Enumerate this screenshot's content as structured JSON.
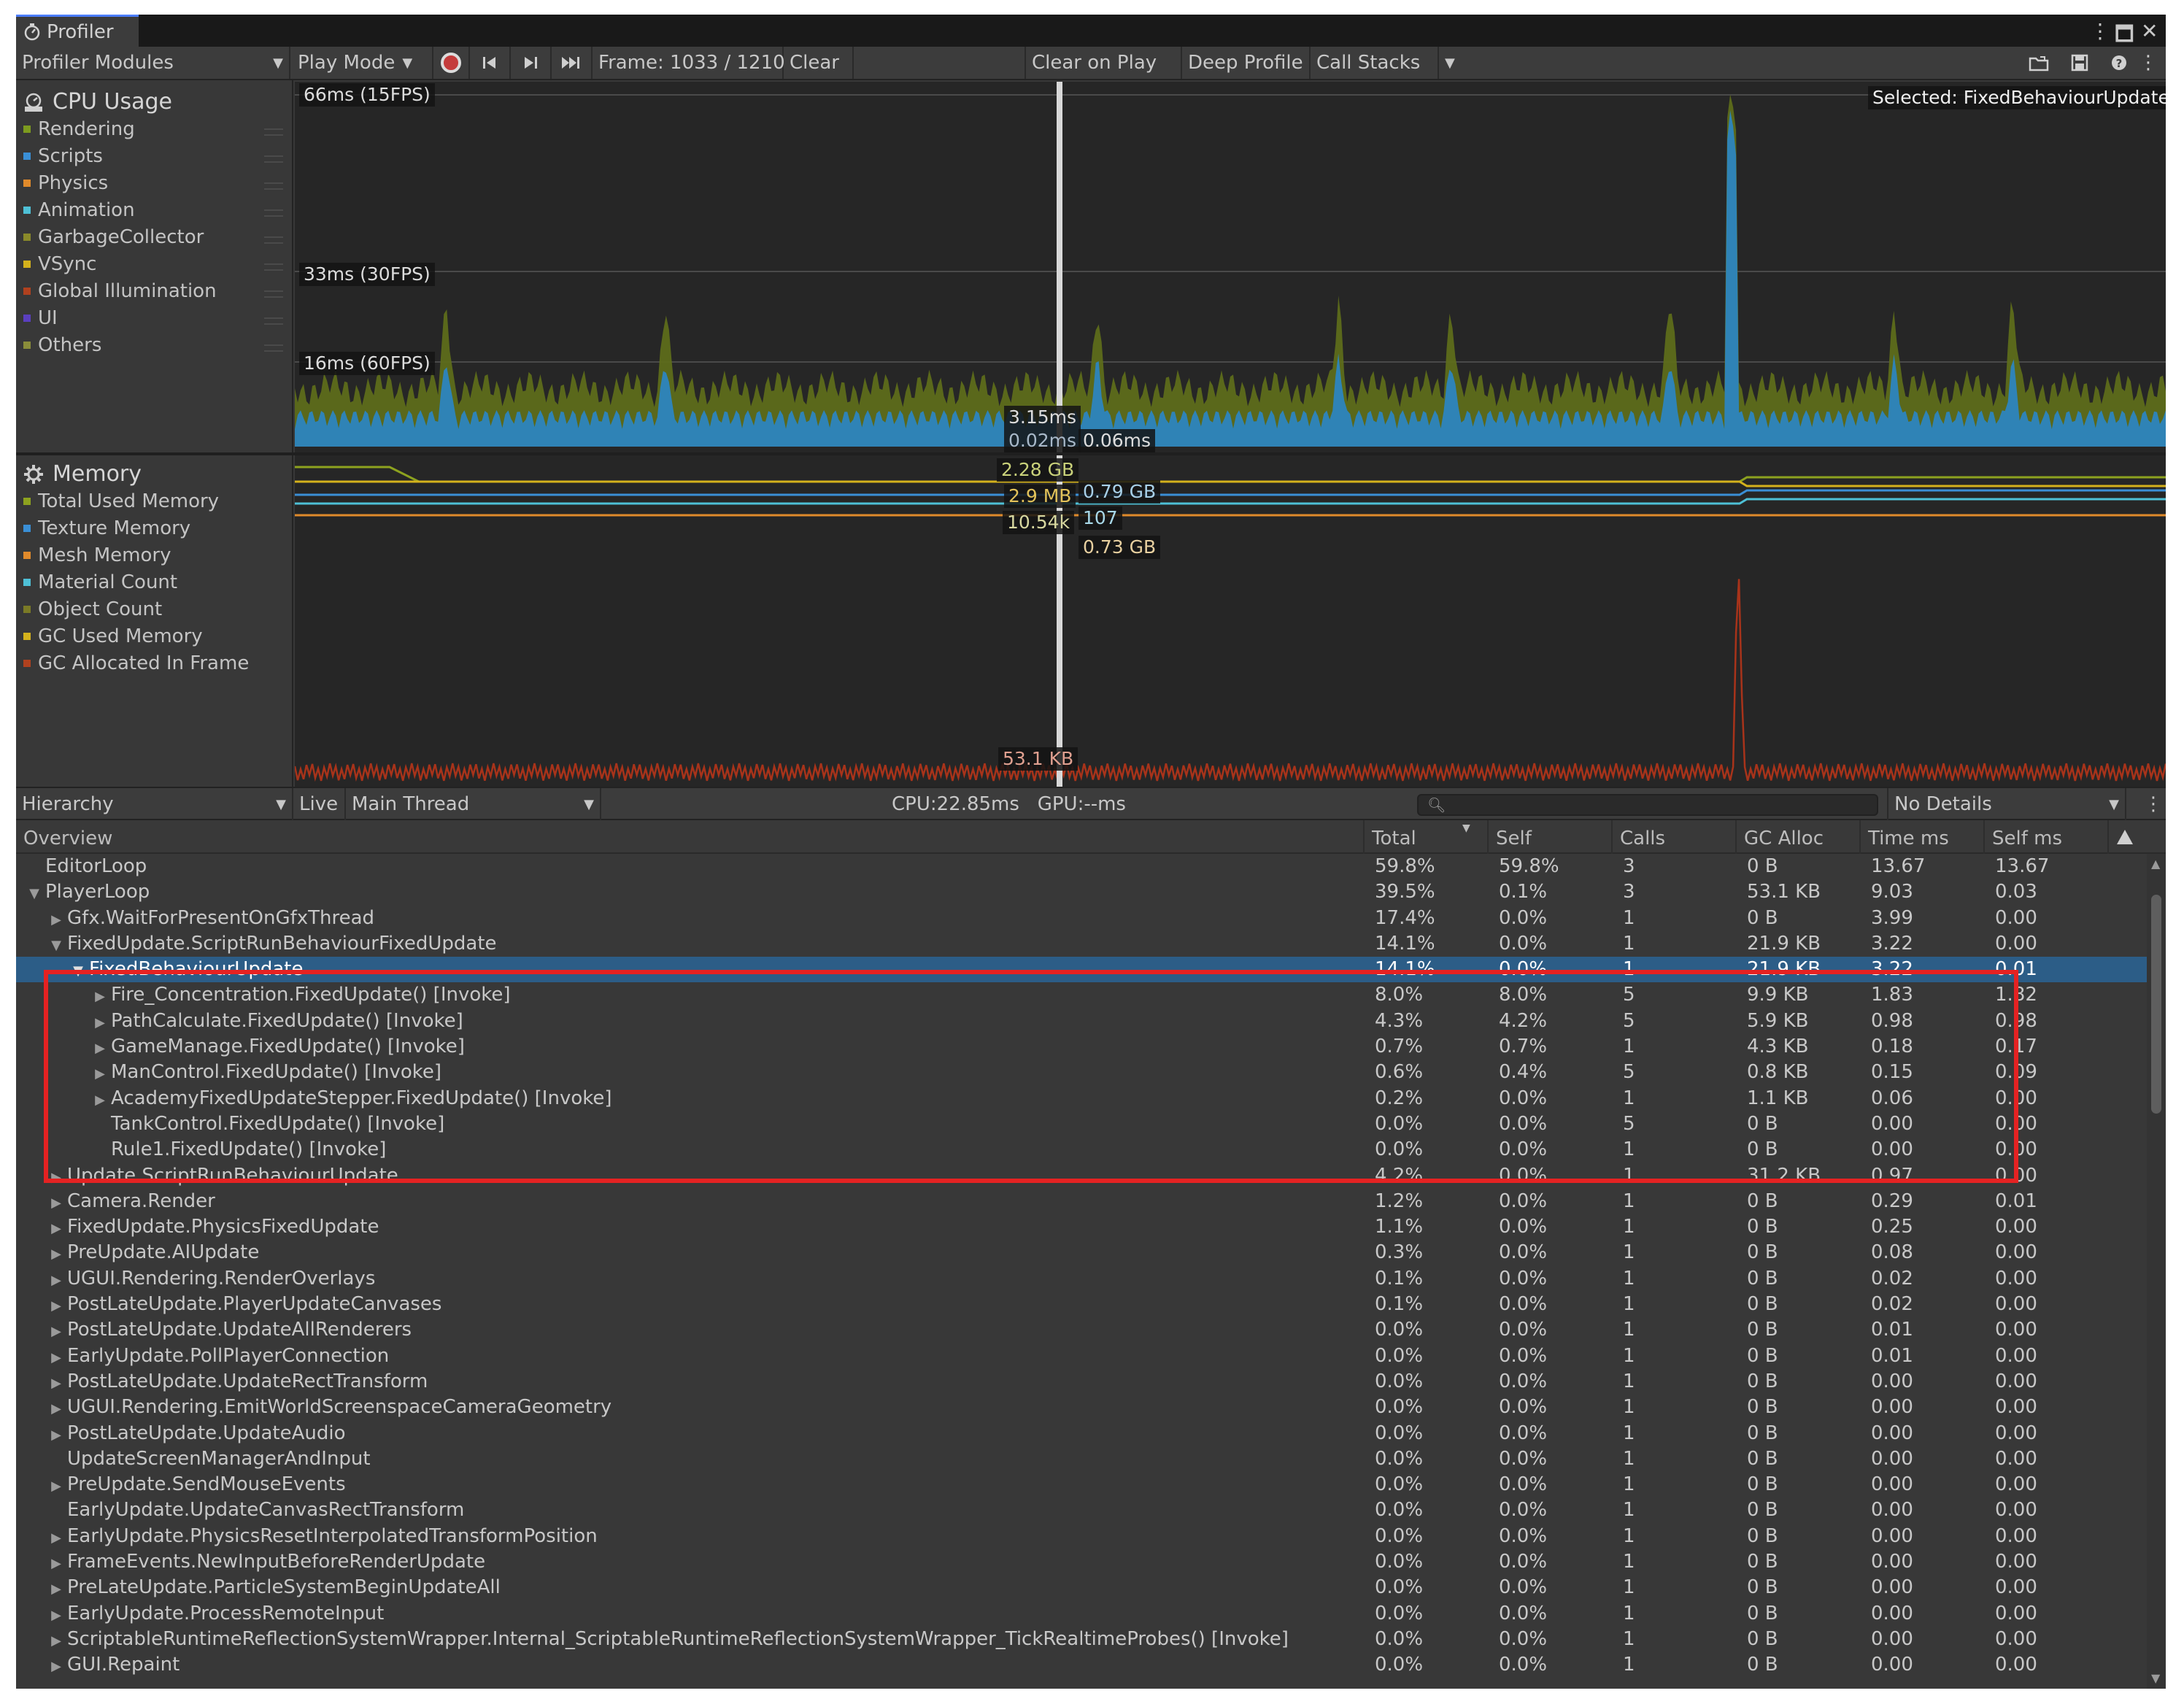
{
  "window": {
    "tab_title": "Profiler",
    "controls": [
      "⋮",
      "🗖",
      "✕"
    ]
  },
  "toolbar": {
    "modules_label": "Profiler Modules",
    "play_mode_label": "Play Mode",
    "frame_label": "Frame: 1033 / 1210",
    "clear_label": "Clear",
    "clear_on_play_label": "Clear on Play",
    "deep_profile_label": "Deep Profile",
    "call_stacks_label": "Call Stacks"
  },
  "cpu_module": {
    "title": "CPU Usage",
    "legend": [
      {
        "label": "Rendering",
        "color": "#7d9b1f"
      },
      {
        "label": "Scripts",
        "color": "#3a8fd6"
      },
      {
        "label": "Physics",
        "color": "#e08a2b"
      },
      {
        "label": "Animation",
        "color": "#4ec0d6"
      },
      {
        "label": "GarbageCollector",
        "color": "#8a8a2a"
      },
      {
        "label": "VSync",
        "color": "#d4b21c"
      },
      {
        "label": "Global Illumination",
        "color": "#b0411f"
      },
      {
        "label": "UI",
        "color": "#5b3fbf"
      },
      {
        "label": "Others",
        "color": "#8a8d3a"
      }
    ],
    "labels": {
      "fps15": "66ms (15FPS)",
      "fps30": "33ms (30FPS)",
      "fps60": "16ms (60FPS)",
      "selected": "Selected: FixedBehaviourUpdate",
      "v1": "3.15ms",
      "v2": "0.02ms",
      "v3": "0.06ms"
    }
  },
  "memory_module": {
    "title": "Memory",
    "legend": [
      {
        "label": "Total Used Memory",
        "color": "#8da21f"
      },
      {
        "label": "Texture Memory",
        "color": "#3a8fd6"
      },
      {
        "label": "Mesh Memory",
        "color": "#e08a2b"
      },
      {
        "label": "Material Count",
        "color": "#4ec0d6"
      },
      {
        "label": "Object Count",
        "color": "#7a7a26"
      },
      {
        "label": "GC Used Memory",
        "color": "#d4b21c"
      },
      {
        "label": "GC Allocated In Frame",
        "color": "#b0411f"
      }
    ],
    "labels": {
      "m1": "2.28 GB",
      "m2": "2.9 MB",
      "m3": "0.79 GB",
      "m4": "10.54k",
      "m5": "107",
      "m6": "0.73 GB",
      "m7": "53.1 KB"
    }
  },
  "hierarchy_toolbar": {
    "view_label": "Hierarchy",
    "live_label": "Live",
    "thread_label": "Main Thread",
    "cpu_gpu_label": "CPU:22.85ms   GPU:--ms",
    "details_label": "No Details"
  },
  "table": {
    "columns": [
      "Overview",
      "Total",
      "Self",
      "Calls",
      "GC Alloc",
      "Time ms",
      "Self ms"
    ],
    "rows": [
      {
        "name": "EditorLoop",
        "indent": 0,
        "arrow": "",
        "total": "59.8%",
        "self": "59.8%",
        "calls": "3",
        "gc": "0 B",
        "time": "13.67",
        "selfms": "13.67"
      },
      {
        "name": "PlayerLoop",
        "indent": 0,
        "arrow": "▼",
        "total": "39.5%",
        "self": "0.1%",
        "calls": "3",
        "gc": "53.1 KB",
        "time": "9.03",
        "selfms": "0.03"
      },
      {
        "name": "Gfx.WaitForPresentOnGfxThread",
        "indent": 1,
        "arrow": "▶",
        "total": "17.4%",
        "self": "0.0%",
        "calls": "1",
        "gc": "0 B",
        "time": "3.99",
        "selfms": "0.00"
      },
      {
        "name": "FixedUpdate.ScriptRunBehaviourFixedUpdate",
        "indent": 1,
        "arrow": "▼",
        "total": "14.1%",
        "self": "0.0%",
        "calls": "1",
        "gc": "21.9 KB",
        "time": "3.22",
        "selfms": "0.00"
      },
      {
        "name": "FixedBehaviourUpdate",
        "indent": 2,
        "arrow": "▼",
        "total": "14.1%",
        "self": "0.0%",
        "calls": "1",
        "gc": "21.9 KB",
        "time": "3.22",
        "selfms": "0.01",
        "selected": true
      },
      {
        "name": "Fire_Concentration.FixedUpdate() [Invoke]",
        "indent": 3,
        "arrow": "▶",
        "total": "8.0%",
        "self": "8.0%",
        "calls": "5",
        "gc": "9.9 KB",
        "time": "1.83",
        "selfms": "1.82"
      },
      {
        "name": "PathCalculate.FixedUpdate() [Invoke]",
        "indent": 3,
        "arrow": "▶",
        "total": "4.3%",
        "self": "4.2%",
        "calls": "5",
        "gc": "5.9 KB",
        "time": "0.98",
        "selfms": "0.98"
      },
      {
        "name": "GameManage.FixedUpdate() [Invoke]",
        "indent": 3,
        "arrow": "▶",
        "total": "0.7%",
        "self": "0.7%",
        "calls": "1",
        "gc": "4.3 KB",
        "time": "0.18",
        "selfms": "0.17"
      },
      {
        "name": "ManControl.FixedUpdate() [Invoke]",
        "indent": 3,
        "arrow": "▶",
        "total": "0.6%",
        "self": "0.4%",
        "calls": "5",
        "gc": "0.8 KB",
        "time": "0.15",
        "selfms": "0.09"
      },
      {
        "name": "AcademyFixedUpdateStepper.FixedUpdate() [Invoke]",
        "indent": 3,
        "arrow": "▶",
        "total": "0.2%",
        "self": "0.0%",
        "calls": "1",
        "gc": "1.1 KB",
        "time": "0.06",
        "selfms": "0.00"
      },
      {
        "name": "TankControl.FixedUpdate() [Invoke]",
        "indent": 3,
        "arrow": "",
        "total": "0.0%",
        "self": "0.0%",
        "calls": "5",
        "gc": "0 B",
        "time": "0.00",
        "selfms": "0.00"
      },
      {
        "name": "Rule1.FixedUpdate() [Invoke]",
        "indent": 3,
        "arrow": "",
        "total": "0.0%",
        "self": "0.0%",
        "calls": "1",
        "gc": "0 B",
        "time": "0.00",
        "selfms": "0.00"
      },
      {
        "name": "Update.ScriptRunBehaviourUpdate",
        "indent": 1,
        "arrow": "▶",
        "total": "4.2%",
        "self": "0.0%",
        "calls": "1",
        "gc": "31.2 KB",
        "time": "0.97",
        "selfms": "0.00"
      },
      {
        "name": "Camera.Render",
        "indent": 1,
        "arrow": "▶",
        "total": "1.2%",
        "self": "0.0%",
        "calls": "1",
        "gc": "0 B",
        "time": "0.29",
        "selfms": "0.01"
      },
      {
        "name": "FixedUpdate.PhysicsFixedUpdate",
        "indent": 1,
        "arrow": "▶",
        "total": "1.1%",
        "self": "0.0%",
        "calls": "1",
        "gc": "0 B",
        "time": "0.25",
        "selfms": "0.00"
      },
      {
        "name": "PreUpdate.AIUpdate",
        "indent": 1,
        "arrow": "▶",
        "total": "0.3%",
        "self": "0.0%",
        "calls": "1",
        "gc": "0 B",
        "time": "0.08",
        "selfms": "0.00"
      },
      {
        "name": "UGUI.Rendering.RenderOverlays",
        "indent": 1,
        "arrow": "▶",
        "total": "0.1%",
        "self": "0.0%",
        "calls": "1",
        "gc": "0 B",
        "time": "0.02",
        "selfms": "0.00"
      },
      {
        "name": "PostLateUpdate.PlayerUpdateCanvases",
        "indent": 1,
        "arrow": "▶",
        "total": "0.1%",
        "self": "0.0%",
        "calls": "1",
        "gc": "0 B",
        "time": "0.02",
        "selfms": "0.00"
      },
      {
        "name": "PostLateUpdate.UpdateAllRenderers",
        "indent": 1,
        "arrow": "▶",
        "total": "0.0%",
        "self": "0.0%",
        "calls": "1",
        "gc": "0 B",
        "time": "0.01",
        "selfms": "0.00"
      },
      {
        "name": "EarlyUpdate.PollPlayerConnection",
        "indent": 1,
        "arrow": "▶",
        "total": "0.0%",
        "self": "0.0%",
        "calls": "1",
        "gc": "0 B",
        "time": "0.01",
        "selfms": "0.00"
      },
      {
        "name": "PostLateUpdate.UpdateRectTransform",
        "indent": 1,
        "arrow": "▶",
        "total": "0.0%",
        "self": "0.0%",
        "calls": "1",
        "gc": "0 B",
        "time": "0.00",
        "selfms": "0.00"
      },
      {
        "name": "UGUI.Rendering.EmitWorldScreenspaceCameraGeometry",
        "indent": 1,
        "arrow": "▶",
        "total": "0.0%",
        "self": "0.0%",
        "calls": "1",
        "gc": "0 B",
        "time": "0.00",
        "selfms": "0.00"
      },
      {
        "name": "PostLateUpdate.UpdateAudio",
        "indent": 1,
        "arrow": "▶",
        "total": "0.0%",
        "self": "0.0%",
        "calls": "1",
        "gc": "0 B",
        "time": "0.00",
        "selfms": "0.00"
      },
      {
        "name": "UpdateScreenManagerAndInput",
        "indent": 1,
        "arrow": "",
        "total": "0.0%",
        "self": "0.0%",
        "calls": "1",
        "gc": "0 B",
        "time": "0.00",
        "selfms": "0.00"
      },
      {
        "name": "PreUpdate.SendMouseEvents",
        "indent": 1,
        "arrow": "▶",
        "total": "0.0%",
        "self": "0.0%",
        "calls": "1",
        "gc": "0 B",
        "time": "0.00",
        "selfms": "0.00"
      },
      {
        "name": "EarlyUpdate.UpdateCanvasRectTransform",
        "indent": 1,
        "arrow": "",
        "total": "0.0%",
        "self": "0.0%",
        "calls": "1",
        "gc": "0 B",
        "time": "0.00",
        "selfms": "0.00"
      },
      {
        "name": "EarlyUpdate.PhysicsResetInterpolatedTransformPosition",
        "indent": 1,
        "arrow": "▶",
        "total": "0.0%",
        "self": "0.0%",
        "calls": "1",
        "gc": "0 B",
        "time": "0.00",
        "selfms": "0.00"
      },
      {
        "name": "FrameEvents.NewInputBeforeRenderUpdate",
        "indent": 1,
        "arrow": "▶",
        "total": "0.0%",
        "self": "0.0%",
        "calls": "1",
        "gc": "0 B",
        "time": "0.00",
        "selfms": "0.00"
      },
      {
        "name": "PreLateUpdate.ParticleSystemBeginUpdateAll",
        "indent": 1,
        "arrow": "▶",
        "total": "0.0%",
        "self": "0.0%",
        "calls": "1",
        "gc": "0 B",
        "time": "0.00",
        "selfms": "0.00"
      },
      {
        "name": "EarlyUpdate.ProcessRemoteInput",
        "indent": 1,
        "arrow": "▶",
        "total": "0.0%",
        "self": "0.0%",
        "calls": "1",
        "gc": "0 B",
        "time": "0.00",
        "selfms": "0.00"
      },
      {
        "name": "ScriptableRuntimeReflectionSystemWrapper.Internal_ScriptableRuntimeReflectionSystemWrapper_TickRealtimeProbes() [Invoke]",
        "indent": 1,
        "arrow": "▶",
        "total": "0.0%",
        "self": "0.0%",
        "calls": "1",
        "gc": "0 B",
        "time": "0.00",
        "selfms": "0.00"
      },
      {
        "name": "GUI.Repaint",
        "indent": 1,
        "arrow": "▶",
        "total": "0.0%",
        "self": "0.0%",
        "calls": "1",
        "gc": "0 B",
        "time": "0.00",
        "selfms": "0.00"
      }
    ]
  }
}
